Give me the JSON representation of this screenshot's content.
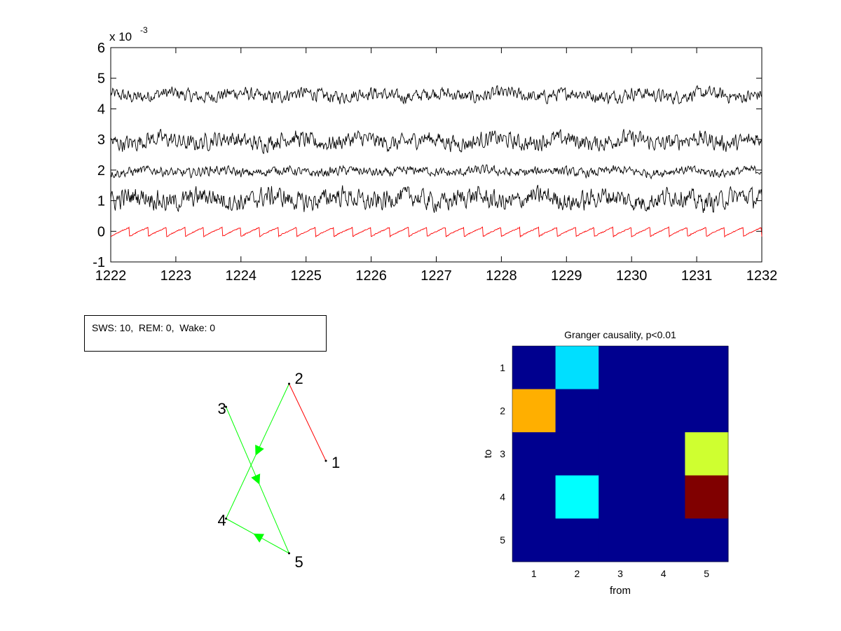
{
  "colors": {
    "trace": "#000000",
    "reference_trace": "#ff0000",
    "graph_edge_red": "#ff0000",
    "graph_edge_green": "#00ff00",
    "heat_background": "#00008f"
  },
  "info_box": {
    "text": "SWS: 10,  REM: 0,  Wake: 0"
  },
  "chart_data": [
    {
      "type": "line",
      "title": "",
      "xlabel": "",
      "ylabel": "",
      "y_multiplier": "x 10",
      "y_multiplier_exponent": "-3",
      "xlim": [
        1222,
        1232
      ],
      "ylim": [
        -1,
        6
      ],
      "x_ticks": [
        "1222",
        "1223",
        "1224",
        "1225",
        "1226",
        "1227",
        "1228",
        "1229",
        "1230",
        "1231",
        "1232"
      ],
      "y_ticks": [
        "-1",
        "0",
        "1",
        "2",
        "3",
        "4",
        "5",
        "6"
      ],
      "grid": false,
      "series": [
        {
          "offset": 4.45,
          "amplitude": 0.28,
          "color": "#000000"
        },
        {
          "offset": 2.95,
          "amplitude": 0.35,
          "color": "#000000"
        },
        {
          "offset": 1.95,
          "amplitude": 0.2,
          "color": "#000000"
        },
        {
          "offset": 1.05,
          "amplitude": 0.42,
          "color": "#000000"
        },
        {
          "offset": -0.05,
          "amplitude": 0.12,
          "color": "#ff0000"
        }
      ]
    },
    {
      "type": "network",
      "title": "",
      "nodes": [
        {
          "id": "1",
          "label": "1",
          "x": 4.6,
          "y": 2.2
        },
        {
          "id": "2",
          "label": "2",
          "x": 3.9,
          "y": 3.2
        },
        {
          "id": "3",
          "label": "3",
          "x": 2.7,
          "y": 2.9
        },
        {
          "id": "4",
          "label": "4",
          "x": 2.7,
          "y": 1.45
        },
        {
          "id": "5",
          "label": "5",
          "x": 3.9,
          "y": 1.0
        }
      ],
      "edges": [
        {
          "from": "2",
          "to": "1",
          "color": "#ff0000",
          "directed": false
        },
        {
          "from": "2",
          "to": "4",
          "color": "#00ff00",
          "directed": true
        },
        {
          "from": "3",
          "to": "5",
          "color": "#00ff00",
          "directed": true
        },
        {
          "from": "5",
          "to": "4",
          "color": "#00ff00",
          "directed": true
        }
      ]
    },
    {
      "type": "heatmap",
      "title": "Granger causality, p<0.01",
      "xlabel": "from",
      "ylabel": "to",
      "x_categories": [
        "1",
        "2",
        "3",
        "4",
        "5"
      ],
      "y_categories": [
        "1",
        "2",
        "3",
        "4",
        "5"
      ],
      "cells": [
        [
          "#00008f",
          "#00dfff",
          "#00008f",
          "#00008f",
          "#00008f"
        ],
        [
          "#ffaf00",
          "#00008f",
          "#00008f",
          "#00008f",
          "#00008f"
        ],
        [
          "#00008f",
          "#00008f",
          "#00008f",
          "#00008f",
          "#cfff30"
        ],
        [
          "#00008f",
          "#00ffff",
          "#00008f",
          "#00008f",
          "#800000"
        ],
        [
          "#00008f",
          "#00008f",
          "#00008f",
          "#00008f",
          "#00008f"
        ]
      ]
    }
  ]
}
